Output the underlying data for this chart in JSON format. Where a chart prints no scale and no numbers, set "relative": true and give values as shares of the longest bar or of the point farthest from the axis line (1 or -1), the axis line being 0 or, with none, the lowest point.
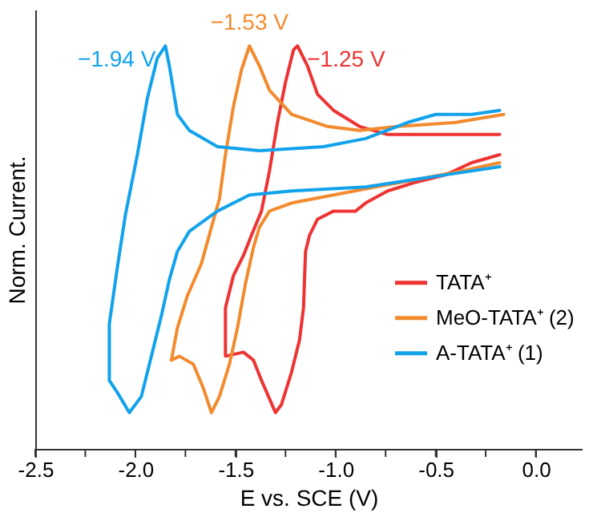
{
  "chart_data": {
    "type": "line",
    "relative": true,
    "xlabel": "E vs. SCE (V)",
    "ylabel": "Norm. Current.",
    "legend": "right",
    "grid": false,
    "line_style": "solid",
    "marker": "none",
    "xlim": [
      -2.5,
      0.23
    ],
    "xticks": [
      {
        "value": -2.5,
        "label": "-2.5"
      },
      {
        "value": -2.25,
        "label": null
      },
      {
        "value": -2,
        "label": "-2.0"
      },
      {
        "value": -1.75,
        "label": null
      },
      {
        "value": -1.5,
        "label": "-1.5"
      },
      {
        "value": -1.25,
        "label": null
      },
      {
        "value": -1,
        "label": "-1.0"
      },
      {
        "value": -0.75,
        "label": null
      },
      {
        "value": -0.5,
        "label": "-0.5"
      },
      {
        "value": -0.25,
        "label": null
      },
      {
        "value": 0,
        "label": "0.0"
      }
    ],
    "annotations": [
      {
        "text": "−1.25 V",
        "x": -1.19,
        "y": 1.0
      },
      {
        "text": "−1.53 V",
        "x": -1.43,
        "y": 1.0
      },
      {
        "text": "−1.94 V",
        "x": -1.85,
        "y": 1.0
      }
    ],
    "series": [
      {
        "name": "TATA⁺",
        "color": "#ee3333",
        "x": [
          -0.18,
          -0.32,
          -0.58,
          -0.74,
          -0.88,
          -1.01,
          -1.09,
          -1.14,
          -1.19,
          -1.21,
          -1.25,
          -1.29,
          -1.33,
          -1.37,
          -1.42,
          -1.46,
          -1.51,
          -1.55,
          -1.55,
          -1.46,
          -1.41,
          -1.37,
          -1.3,
          -1.27,
          -1.22,
          -1.18,
          -1.16,
          -1.15,
          -1.13,
          -1.09,
          -1.01,
          -0.9,
          -0.85,
          -0.74,
          -0.61,
          -0.45,
          -0.32,
          -0.18
        ],
        "values": [
          0.78,
          0.78,
          0.78,
          0.78,
          0.8,
          0.84,
          0.88,
          0.95,
          1.0,
          0.99,
          0.91,
          0.81,
          0.69,
          0.59,
          0.53,
          0.48,
          0.43,
          0.35,
          0.23,
          0.24,
          0.22,
          0.17,
          0.09,
          0.11,
          0.19,
          0.27,
          0.35,
          0.49,
          0.53,
          0.57,
          0.59,
          0.59,
          0.61,
          0.64,
          0.66,
          0.68,
          0.71,
          0.73
        ]
      },
      {
        "name": "MeO-TATA⁺ (2)",
        "color": "#f28a2e",
        "x": [
          -0.16,
          -0.4,
          -0.69,
          -0.88,
          -1.04,
          -1.22,
          -1.33,
          -1.38,
          -1.43,
          -1.47,
          -1.51,
          -1.55,
          -1.58,
          -1.62,
          -1.67,
          -1.74,
          -1.79,
          -1.82,
          -1.78,
          -1.71,
          -1.66,
          -1.62,
          -1.58,
          -1.53,
          -1.49,
          -1.45,
          -1.41,
          -1.38,
          -1.33,
          -1.22,
          -1.01,
          -0.8,
          -0.58,
          -0.37,
          -0.18
        ],
        "values": [
          0.83,
          0.81,
          0.8,
          0.79,
          0.8,
          0.83,
          0.89,
          0.95,
          1.0,
          0.94,
          0.85,
          0.73,
          0.62,
          0.55,
          0.46,
          0.38,
          0.3,
          0.22,
          0.23,
          0.21,
          0.15,
          0.09,
          0.13,
          0.21,
          0.3,
          0.41,
          0.5,
          0.55,
          0.59,
          0.61,
          0.63,
          0.65,
          0.67,
          0.69,
          0.71
        ]
      },
      {
        "name": "A-TATA⁺ (1)",
        "color": "#12a2ec",
        "x": [
          -0.18,
          -0.32,
          -0.5,
          -0.64,
          -0.85,
          -1.06,
          -1.38,
          -1.59,
          -1.73,
          -1.79,
          -1.83,
          -1.85,
          -1.89,
          -1.94,
          -1.99,
          -2.05,
          -2.09,
          -2.13,
          -2.13,
          -2.09,
          -2.03,
          -1.97,
          -1.93,
          -1.87,
          -1.83,
          -1.79,
          -1.73,
          -1.59,
          -1.43,
          -1.22,
          -0.85,
          -0.45,
          -0.18
        ],
        "values": [
          0.84,
          0.83,
          0.83,
          0.81,
          0.77,
          0.75,
          0.74,
          0.75,
          0.79,
          0.83,
          0.95,
          1.0,
          0.97,
          0.87,
          0.73,
          0.58,
          0.45,
          0.31,
          0.17,
          0.14,
          0.09,
          0.13,
          0.21,
          0.33,
          0.42,
          0.49,
          0.54,
          0.59,
          0.63,
          0.64,
          0.65,
          0.68,
          0.7
        ]
      }
    ]
  }
}
